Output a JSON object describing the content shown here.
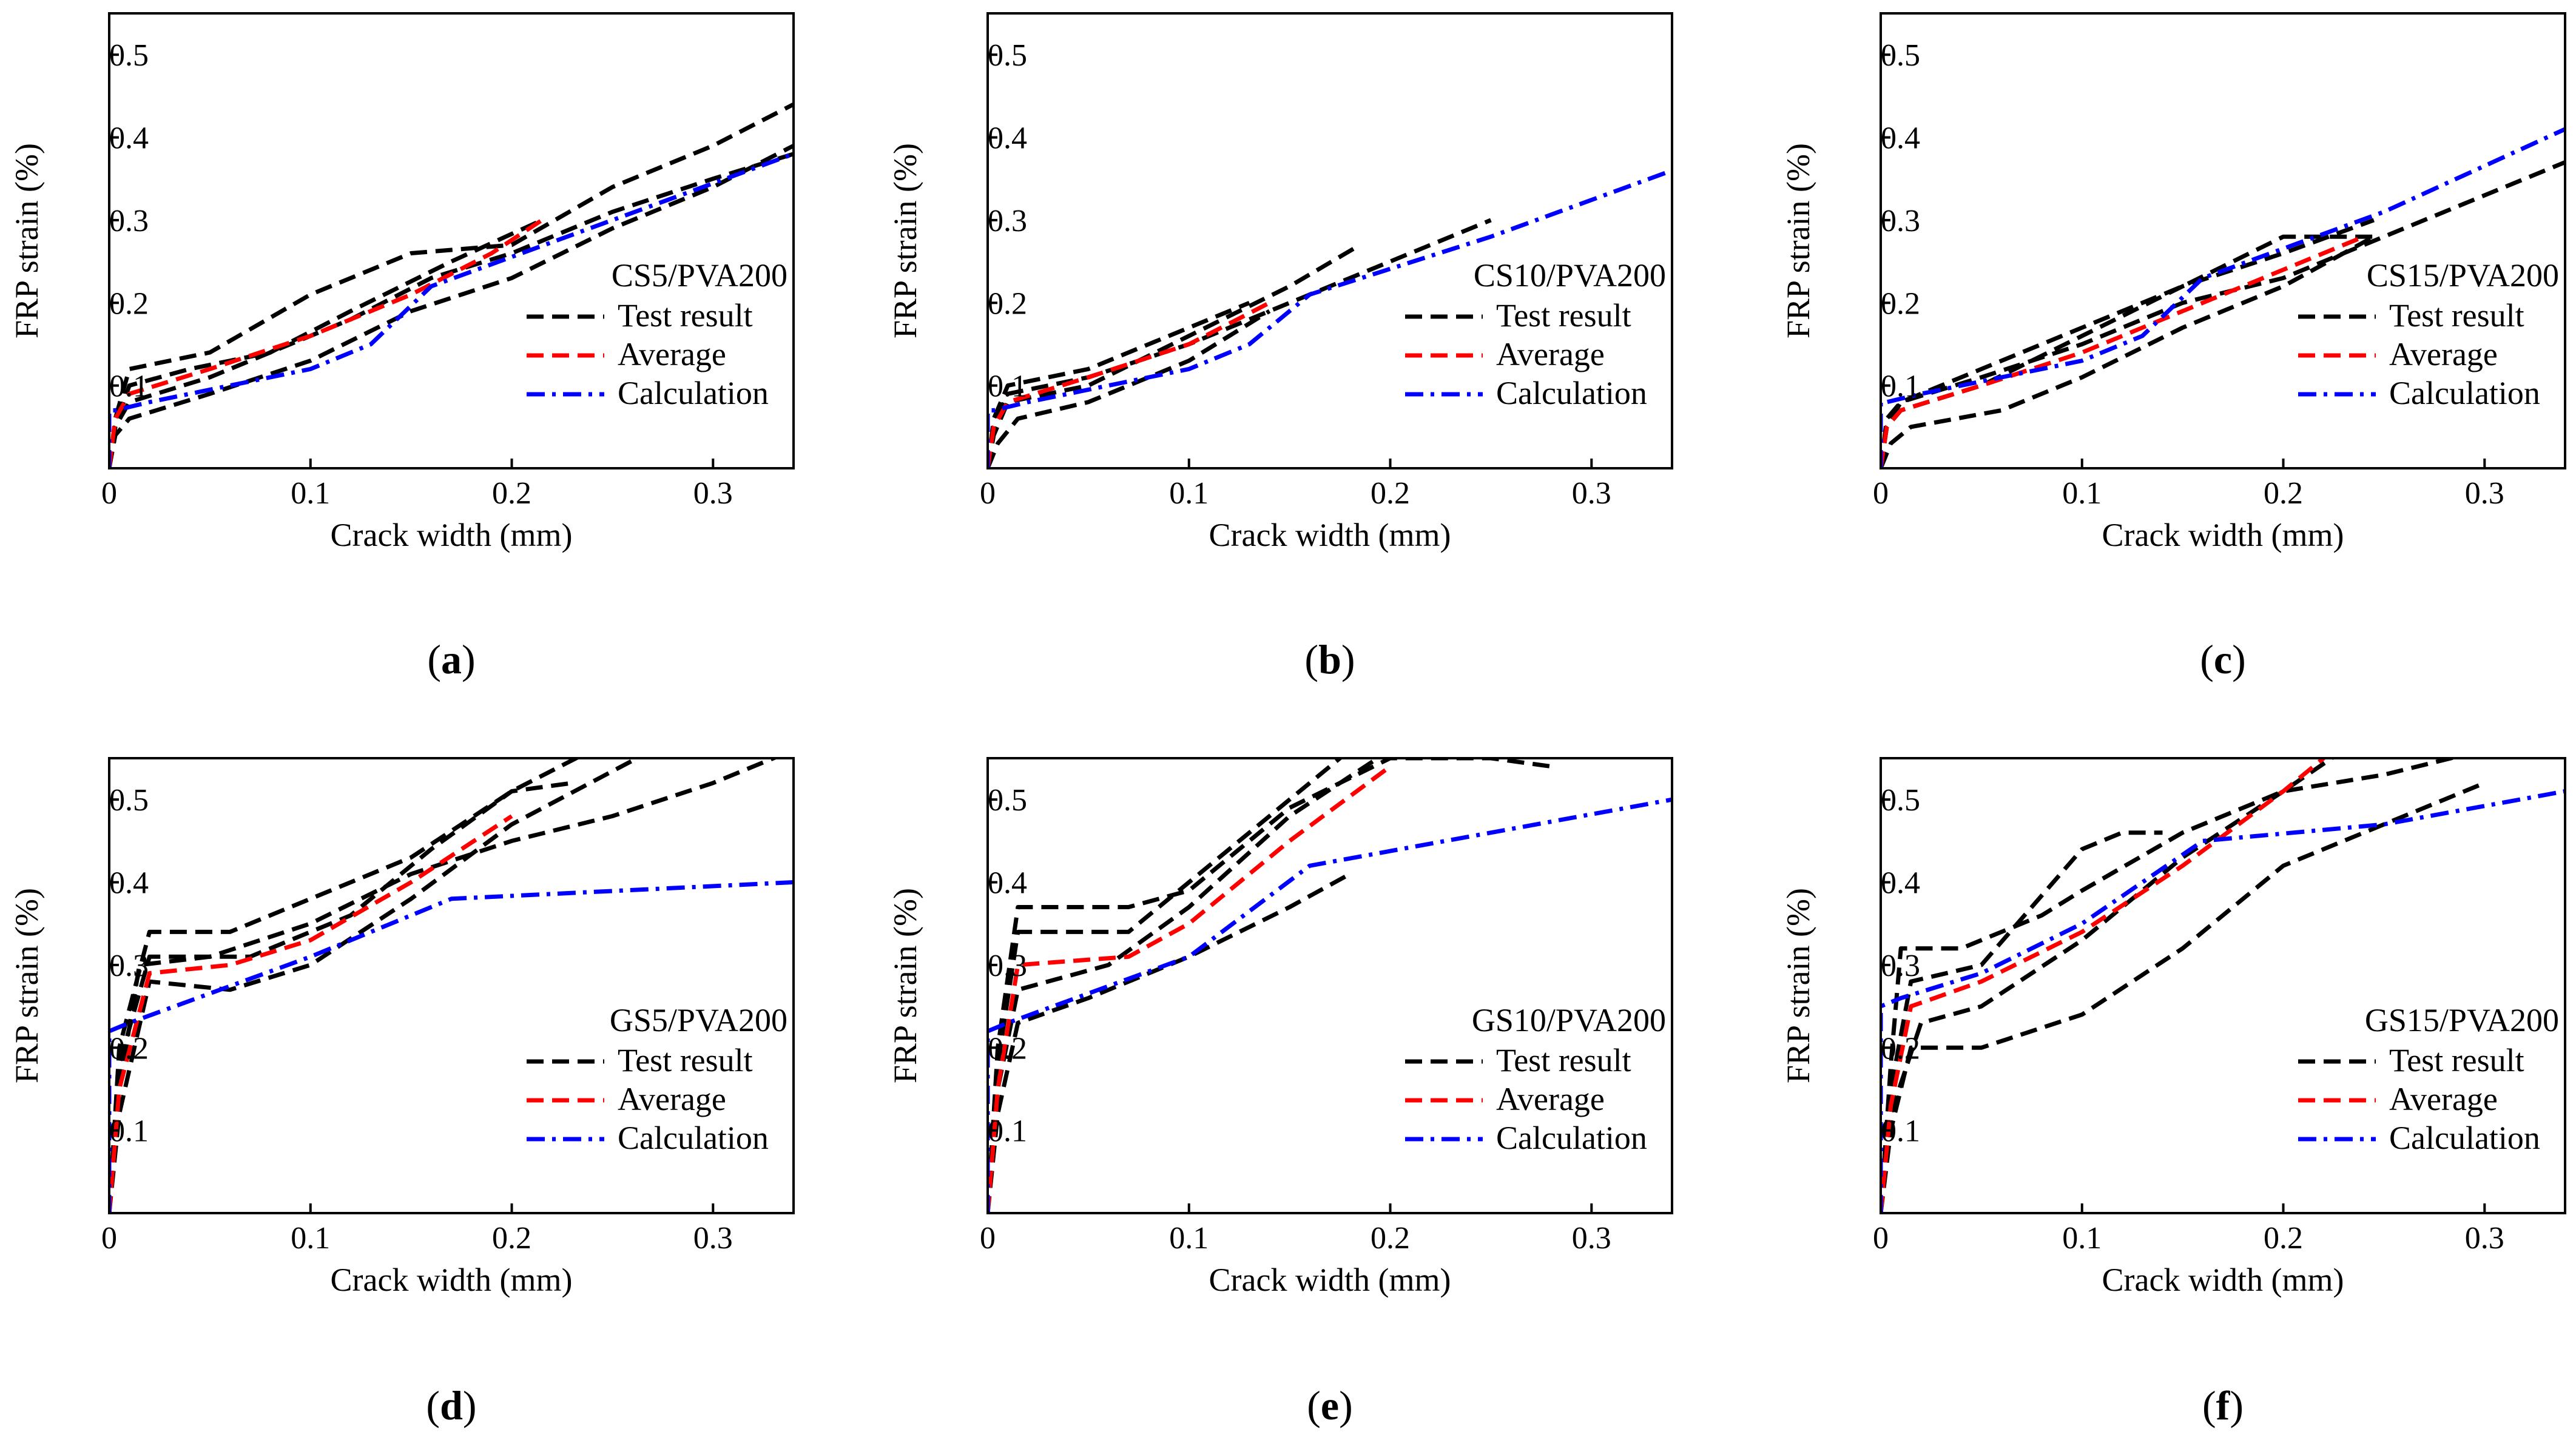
{
  "figure": {
    "legend_labels": [
      "Test result",
      "Average",
      "Calculation"
    ],
    "colors": {
      "test": "#000000",
      "average": "#ff0000",
      "calculation": "#0000ff"
    }
  },
  "chart_data": [
    {
      "type": "line",
      "panel_label": "a",
      "title": "CS5/PVA200",
      "xlabel": "Crack width (mm)",
      "ylabel": "FRP strain (%)",
      "xlim": [
        0,
        0.34
      ],
      "ylim": [
        0,
        0.55
      ],
      "xticks": [
        0.1,
        0.2,
        0.3
      ],
      "yticks": [
        0.1,
        0.2,
        0.3,
        0.4,
        0.5
      ],
      "legend_position": "right",
      "series": [
        {
          "name": "Test result",
          "color": "#000000",
          "style": "dashed",
          "x": [
            0.0,
            0.003,
            0.01,
            0.05,
            0.08,
            0.12,
            0.16,
            0.2,
            0.25,
            0.3,
            0.34
          ],
          "y": [
            0.0,
            0.05,
            0.08,
            0.11,
            0.14,
            0.18,
            0.23,
            0.26,
            0.31,
            0.35,
            0.38
          ]
        },
        {
          "color": "#000000",
          "style": "dashed",
          "x": [
            0.0,
            0.003,
            0.01,
            0.05,
            0.1,
            0.15,
            0.2,
            0.25,
            0.3,
            0.34
          ],
          "y": [
            0.0,
            0.06,
            0.12,
            0.14,
            0.21,
            0.26,
            0.27,
            0.34,
            0.39,
            0.44
          ]
        },
        {
          "color": "#000000",
          "style": "dashed",
          "x": [
            0.0,
            0.003,
            0.01,
            0.04,
            0.08,
            0.12,
            0.17,
            0.215
          ],
          "y": [
            0.0,
            0.05,
            0.1,
            0.12,
            0.14,
            0.19,
            0.25,
            0.3
          ]
        },
        {
          "color": "#000000",
          "style": "dashed",
          "x": [
            0.0,
            0.003,
            0.01,
            0.05,
            0.1,
            0.15,
            0.2,
            0.25,
            0.3,
            0.34
          ],
          "y": [
            0.0,
            0.04,
            0.06,
            0.09,
            0.13,
            0.19,
            0.23,
            0.29,
            0.34,
            0.39
          ]
        },
        {
          "name": "Average",
          "color": "#ff0000",
          "style": "dashed",
          "x": [
            0.0,
            0.003,
            0.01,
            0.05,
            0.1,
            0.15,
            0.19,
            0.215
          ],
          "y": [
            0.0,
            0.06,
            0.09,
            0.12,
            0.16,
            0.21,
            0.26,
            0.3
          ]
        },
        {
          "name": "Calculation",
          "color": "#0000ff",
          "style": "dashdot",
          "x": [
            0.0,
            0.0,
            0.003,
            0.02,
            0.1,
            0.13,
            0.16,
            0.25,
            0.34
          ],
          "y": [
            0.0,
            0.07,
            0.07,
            0.08,
            0.12,
            0.15,
            0.22,
            0.3,
            0.38
          ]
        }
      ]
    },
    {
      "type": "line",
      "panel_label": "b",
      "title": "CS10/PVA200",
      "xlabel": "Crack width (mm)",
      "ylabel": "FRP strain (%)",
      "xlim": [
        0,
        0.34
      ],
      "ylim": [
        0,
        0.55
      ],
      "xticks": [
        0.1,
        0.2,
        0.3
      ],
      "yticks": [
        0.1,
        0.2,
        0.3,
        0.4,
        0.5
      ],
      "legend_position": "right",
      "series": [
        {
          "name": "Test result",
          "color": "#000000",
          "style": "dashed",
          "x": [
            0.0,
            0.003,
            0.01,
            0.05,
            0.1,
            0.15,
            0.2,
            0.25
          ],
          "y": [
            0.0,
            0.05,
            0.09,
            0.11,
            0.15,
            0.2,
            0.25,
            0.3
          ]
        },
        {
          "color": "#000000",
          "style": "dashed",
          "x": [
            0.0,
            0.003,
            0.01,
            0.05,
            0.1,
            0.15,
            0.185
          ],
          "y": [
            0.0,
            0.04,
            0.08,
            0.1,
            0.16,
            0.22,
            0.27
          ]
        },
        {
          "color": "#000000",
          "style": "dashed",
          "x": [
            0.0,
            0.005,
            0.015,
            0.05,
            0.1,
            0.14
          ],
          "y": [
            0.0,
            0.03,
            0.06,
            0.08,
            0.13,
            0.19
          ]
        },
        {
          "color": "#000000",
          "style": "dashed",
          "x": [
            0.0,
            0.003,
            0.01,
            0.05,
            0.1,
            0.13
          ],
          "y": [
            0.0,
            0.06,
            0.1,
            0.12,
            0.17,
            0.2
          ]
        },
        {
          "name": "Average",
          "color": "#ff0000",
          "style": "dashed",
          "x": [
            0.0,
            0.003,
            0.01,
            0.05,
            0.1,
            0.14
          ],
          "y": [
            0.0,
            0.05,
            0.08,
            0.11,
            0.15,
            0.2
          ]
        },
        {
          "name": "Calculation",
          "color": "#0000ff",
          "style": "dashdot",
          "x": [
            0.0,
            0.0,
            0.003,
            0.02,
            0.1,
            0.13,
            0.16,
            0.25,
            0.34
          ],
          "y": [
            0.0,
            0.07,
            0.07,
            0.08,
            0.12,
            0.15,
            0.21,
            0.28,
            0.36
          ]
        }
      ]
    },
    {
      "type": "line",
      "panel_label": "c",
      "title": "CS15/PVA200",
      "xlabel": "Crack width (mm)",
      "ylabel": "FRP strain (%)",
      "xlim": [
        0,
        0.34
      ],
      "ylim": [
        0,
        0.55
      ],
      "xticks": [
        0.1,
        0.2,
        0.3
      ],
      "yticks": [
        0.1,
        0.2,
        0.3,
        0.4,
        0.5
      ],
      "legend_position": "right",
      "series": [
        {
          "name": "Test result",
          "color": "#000000",
          "style": "dashed",
          "x": [
            0.0,
            0.003,
            0.01,
            0.05,
            0.1,
            0.15,
            0.2,
            0.25,
            0.3,
            0.34
          ],
          "y": [
            0.0,
            0.05,
            0.08,
            0.11,
            0.15,
            0.2,
            0.23,
            0.28,
            0.33,
            0.37
          ]
        },
        {
          "color": "#000000",
          "style": "dashed",
          "x": [
            0.0,
            0.003,
            0.01,
            0.05,
            0.1,
            0.15,
            0.2,
            0.245
          ],
          "y": [
            0.0,
            0.05,
            0.07,
            0.1,
            0.16,
            0.22,
            0.26,
            0.3
          ]
        },
        {
          "color": "#000000",
          "style": "dashed",
          "x": [
            0.0,
            0.005,
            0.015,
            0.06,
            0.1,
            0.15,
            0.2,
            0.245
          ],
          "y": [
            0.0,
            0.03,
            0.05,
            0.07,
            0.11,
            0.17,
            0.22,
            0.28
          ]
        },
        {
          "color": "#000000",
          "style": "dashed",
          "x": [
            0.0,
            0.003,
            0.01,
            0.05,
            0.1,
            0.15,
            0.2,
            0.245
          ],
          "y": [
            0.0,
            0.06,
            0.08,
            0.12,
            0.17,
            0.22,
            0.28,
            0.28
          ]
        },
        {
          "name": "Average",
          "color": "#ff0000",
          "style": "dashed",
          "x": [
            0.0,
            0.003,
            0.01,
            0.05,
            0.1,
            0.15,
            0.2,
            0.24
          ],
          "y": [
            0.0,
            0.05,
            0.07,
            0.1,
            0.14,
            0.19,
            0.24,
            0.28
          ]
        },
        {
          "name": "Calculation",
          "color": "#0000ff",
          "style": "dashdot",
          "x": [
            0.0,
            0.0,
            0.003,
            0.02,
            0.1,
            0.13,
            0.16,
            0.25,
            0.34
          ],
          "y": [
            0.0,
            0.08,
            0.08,
            0.09,
            0.13,
            0.16,
            0.23,
            0.31,
            0.41
          ]
        }
      ]
    },
    {
      "type": "line",
      "panel_label": "d",
      "title": "GS5/PVA200",
      "xlabel": "Crack width (mm)",
      "ylabel": "FRP strain (%)",
      "xlim": [
        0,
        0.34
      ],
      "ylim": [
        0,
        0.55
      ],
      "xticks": [
        0.1,
        0.2,
        0.3
      ],
      "yticks": [
        0.1,
        0.2,
        0.3,
        0.4,
        0.5
      ],
      "legend_position": "right",
      "series": [
        {
          "name": "Test result",
          "color": "#000000",
          "style": "dashed",
          "x": [
            0.0,
            0.005,
            0.015,
            0.05,
            0.1,
            0.15,
            0.2,
            0.25,
            0.3,
            0.34
          ],
          "y": [
            0.0,
            0.15,
            0.3,
            0.31,
            0.35,
            0.41,
            0.45,
            0.48,
            0.52,
            0.56
          ]
        },
        {
          "color": "#000000",
          "style": "dashed",
          "x": [
            0.0,
            0.005,
            0.02,
            0.06,
            0.1,
            0.15,
            0.2,
            0.24
          ],
          "y": [
            0.0,
            0.2,
            0.34,
            0.34,
            0.38,
            0.43,
            0.51,
            0.56
          ]
        },
        {
          "color": "#000000",
          "style": "dashed",
          "x": [
            0.0,
            0.005,
            0.02,
            0.07,
            0.12,
            0.16,
            0.2,
            0.23
          ],
          "y": [
            0.0,
            0.18,
            0.31,
            0.31,
            0.36,
            0.44,
            0.51,
            0.52
          ]
        },
        {
          "color": "#000000",
          "style": "dashed",
          "x": [
            0.0,
            0.005,
            0.02,
            0.06,
            0.1,
            0.15,
            0.2,
            0.27
          ],
          "y": [
            0.0,
            0.12,
            0.28,
            0.27,
            0.3,
            0.38,
            0.47,
            0.56
          ]
        },
        {
          "name": "Average",
          "color": "#ff0000",
          "style": "dashed",
          "x": [
            0.0,
            0.005,
            0.02,
            0.06,
            0.1,
            0.15,
            0.2
          ],
          "y": [
            0.0,
            0.15,
            0.29,
            0.3,
            0.33,
            0.4,
            0.48
          ]
        },
        {
          "name": "Calculation",
          "color": "#0000ff",
          "style": "dashdot",
          "x": [
            0.0,
            0.0,
            0.01,
            0.1,
            0.17,
            0.34
          ],
          "y": [
            0.0,
            0.22,
            0.23,
            0.31,
            0.38,
            0.4
          ]
        }
      ]
    },
    {
      "type": "line",
      "panel_label": "e",
      "title": "GS10/PVA200",
      "xlabel": "Crack width (mm)",
      "ylabel": "FRP strain (%)",
      "xlim": [
        0,
        0.34
      ],
      "ylim": [
        0,
        0.55
      ],
      "xticks": [
        0.1,
        0.2,
        0.3
      ],
      "yticks": [
        0.1,
        0.2,
        0.3,
        0.4,
        0.5
      ],
      "legend_position": "right",
      "series": [
        {
          "name": "Test result",
          "color": "#000000",
          "style": "dashed",
          "x": [
            0.0,
            0.005,
            0.015,
            0.07,
            0.1,
            0.15,
            0.2,
            0.25,
            0.28
          ],
          "y": [
            0.0,
            0.2,
            0.37,
            0.37,
            0.39,
            0.49,
            0.55,
            0.55,
            0.54
          ]
        },
        {
          "color": "#000000",
          "style": "dashed",
          "x": [
            0.0,
            0.005,
            0.015,
            0.07,
            0.1,
            0.15,
            0.18
          ],
          "y": [
            0.0,
            0.18,
            0.34,
            0.34,
            0.4,
            0.5,
            0.56
          ]
        },
        {
          "color": "#000000",
          "style": "dashed",
          "x": [
            0.0,
            0.005,
            0.015,
            0.06,
            0.1,
            0.15,
            0.2
          ],
          "y": [
            0.0,
            0.15,
            0.27,
            0.3,
            0.37,
            0.48,
            0.56
          ]
        },
        {
          "color": "#000000",
          "style": "dashed",
          "x": [
            0.0,
            0.005,
            0.015,
            0.05,
            0.1,
            0.15,
            0.18
          ],
          "y": [
            0.0,
            0.12,
            0.23,
            0.26,
            0.31,
            0.37,
            0.41
          ]
        },
        {
          "name": "Average",
          "color": "#ff0000",
          "style": "dashed",
          "x": [
            0.0,
            0.005,
            0.015,
            0.07,
            0.1,
            0.15,
            0.2
          ],
          "y": [
            0.0,
            0.15,
            0.3,
            0.31,
            0.35,
            0.45,
            0.54
          ]
        },
        {
          "name": "Calculation",
          "color": "#0000ff",
          "style": "dashdot",
          "x": [
            0.0,
            0.0,
            0.01,
            0.1,
            0.16,
            0.34
          ],
          "y": [
            0.0,
            0.22,
            0.23,
            0.31,
            0.42,
            0.5
          ]
        }
      ]
    },
    {
      "type": "line",
      "panel_label": "f",
      "title": "GS15/PVA200",
      "xlabel": "Crack width (mm)",
      "ylabel": "FRP strain (%)",
      "xlim": [
        0,
        0.34
      ],
      "ylim": [
        0,
        0.55
      ],
      "xticks": [
        0.1,
        0.2,
        0.3
      ],
      "yticks": [
        0.1,
        0.2,
        0.3,
        0.4,
        0.5
      ],
      "legend_position": "right",
      "series": [
        {
          "name": "Test result",
          "color": "#000000",
          "style": "dashed",
          "x": [
            0.0,
            0.005,
            0.01,
            0.04,
            0.08,
            0.1,
            0.15,
            0.2,
            0.25,
            0.3
          ],
          "y": [
            0.0,
            0.18,
            0.32,
            0.32,
            0.36,
            0.39,
            0.46,
            0.51,
            0.53,
            0.56
          ]
        },
        {
          "color": "#000000",
          "style": "dashed",
          "x": [
            0.0,
            0.005,
            0.015,
            0.05,
            0.1,
            0.15,
            0.2,
            0.25,
            0.3
          ],
          "y": [
            0.0,
            0.1,
            0.2,
            0.2,
            0.24,
            0.32,
            0.42,
            0.47,
            0.52
          ]
        },
        {
          "color": "#000000",
          "style": "dashed",
          "x": [
            0.0,
            0.005,
            0.015,
            0.05,
            0.1,
            0.12,
            0.14
          ],
          "y": [
            0.0,
            0.15,
            0.28,
            0.3,
            0.44,
            0.46,
            0.46
          ]
        },
        {
          "color": "#000000",
          "style": "dashed",
          "x": [
            0.0,
            0.005,
            0.02,
            0.05,
            0.1,
            0.15,
            0.2,
            0.23
          ],
          "y": [
            0.0,
            0.12,
            0.23,
            0.25,
            0.33,
            0.43,
            0.51,
            0.56
          ]
        },
        {
          "name": "Average",
          "color": "#ff0000",
          "style": "dashed",
          "x": [
            0.0,
            0.005,
            0.015,
            0.05,
            0.1,
            0.15,
            0.2,
            0.225
          ],
          "y": [
            0.0,
            0.13,
            0.25,
            0.28,
            0.34,
            0.42,
            0.51,
            0.56
          ]
        },
        {
          "name": "Calculation",
          "color": "#0000ff",
          "style": "dashdot",
          "x": [
            0.0,
            0.0,
            0.01,
            0.05,
            0.1,
            0.16,
            0.25,
            0.34
          ],
          "y": [
            0.0,
            0.25,
            0.26,
            0.29,
            0.35,
            0.45,
            0.47,
            0.51
          ]
        }
      ]
    }
  ]
}
